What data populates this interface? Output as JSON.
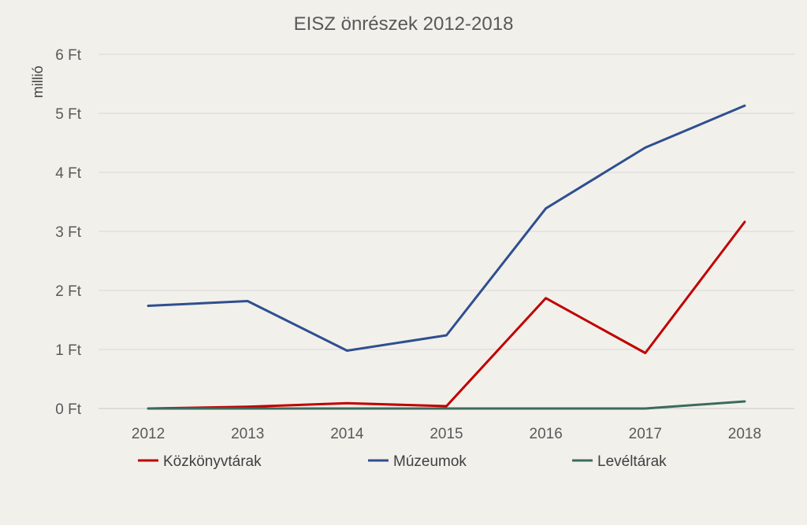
{
  "chart_data": {
    "type": "line",
    "title": "EISZ önrészek 2012-2018",
    "ylabel": "millió",
    "xlabel": "",
    "categories": [
      "2012",
      "2013",
      "2014",
      "2015",
      "2016",
      "2017",
      "2018"
    ],
    "yticks": [
      "0 Ft",
      "1 Ft",
      "2 Ft",
      "3 Ft",
      "4 Ft",
      "5 Ft",
      "6 Ft"
    ],
    "ylim": [
      0,
      6
    ],
    "grid": true,
    "legend_position": "bottom",
    "series": [
      {
        "name": "Közkönyvtárak",
        "color": "#c00000",
        "values": [
          0.0,
          0.03,
          0.09,
          0.04,
          1.87,
          0.94,
          3.16
        ]
      },
      {
        "name": "Múzeumok",
        "color": "#2f4f8f",
        "values": [
          1.74,
          1.82,
          0.98,
          1.24,
          3.39,
          4.42,
          5.13
        ]
      },
      {
        "name": "Levéltárak",
        "color": "#3b6b5e",
        "values": [
          0.0,
          0.0,
          0.0,
          0.0,
          0.0,
          0.0,
          0.12
        ]
      }
    ]
  }
}
